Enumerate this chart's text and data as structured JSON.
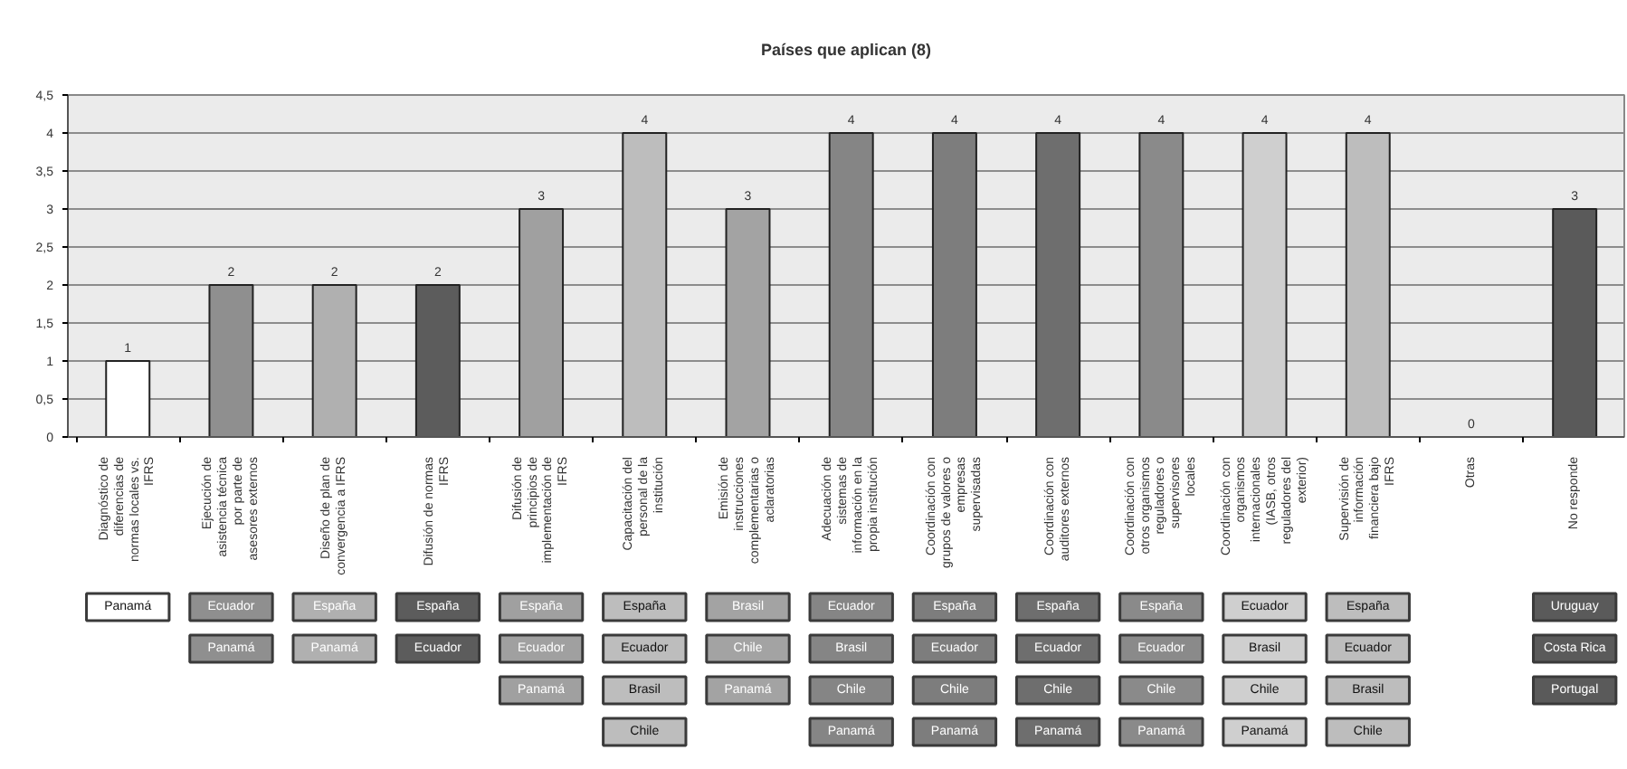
{
  "chart_data": {
    "type": "bar",
    "title": "Países que aplican (8)",
    "categories": [
      "Diagnóstico de diferencias de normas locales vs. IFRS",
      "Ejecución de asistencia técnica por parte de asesores externos",
      "Diseño de plan de convergencia a IFRS",
      "Difusión de normas IFRS",
      "Difusión de principios de implementación de IFRS",
      "Capacitación del personal de la institución",
      "Emisión de instrucciones complementarias o aclaratorias",
      "Adecuación de sistemas de información en la propia institución",
      "Coordinación con grupos de valores o empresas supervisadas",
      "Coordinación con auditores externos",
      "Coordinación con otros organismos reguladores o supervisores locales",
      "Coordinación con organismos internacionales (IASB, otros reguladores del exterior)",
      "Supervisión de información financiera bajo IFRS",
      "Otras",
      "No responde"
    ],
    "values": [
      1,
      2,
      2,
      2,
      3,
      4,
      3,
      4,
      4,
      4,
      4,
      4,
      4,
      0,
      3
    ],
    "colors": [
      "#ffffff",
      "#8f8f8f",
      "#b0b0b0",
      "#5c5c5c",
      "#a0a0a0",
      "#bdbdbd",
      "#a3a3a3",
      "#858585",
      "#7d7d7d",
      "#6e6e6e",
      "#8a8a8a",
      "#cfcfcf",
      "#bdbdbd",
      "#9a9a9a",
      "#5a5a5a"
    ],
    "ylim": [
      0,
      4.5
    ],
    "yticks": [
      0,
      {
        "value": 0.5,
        "label": "0,5"
      },
      1,
      {
        "value": 1.5,
        "label": "1,5"
      },
      2,
      {
        "value": 2.5,
        "label": "2,5"
      },
      3,
      {
        "value": 3.5,
        "label": "3,5"
      },
      4,
      {
        "value": 4.5,
        "label": "4,5"
      }
    ],
    "grid": "y",
    "data_labels": true,
    "annotations": [
      "Panamá",
      "Ecuador",
      "Panamá",
      "España",
      "Panamá",
      "España",
      "Ecuador",
      "España",
      "Ecuador",
      "Panamá",
      "España",
      "Ecuador",
      "Brasil",
      "Chile",
      "Brasil",
      "Chile",
      "Panamá",
      "Ecuador",
      "Brasil",
      "Chile",
      "Panamá",
      "España",
      "Ecuador",
      "Chile",
      "Panamá",
      "España",
      "Ecuador",
      "Chile",
      "Panamá",
      "España",
      "Ecuador",
      "Chile",
      "Panamá",
      "Ecuador",
      "Brasil",
      "Chile",
      "Panamá",
      "España",
      "Ecuador",
      "Brasil",
      "Chile",
      "Uruguay",
      "Costa Rica",
      "Portugal"
    ]
  }
}
